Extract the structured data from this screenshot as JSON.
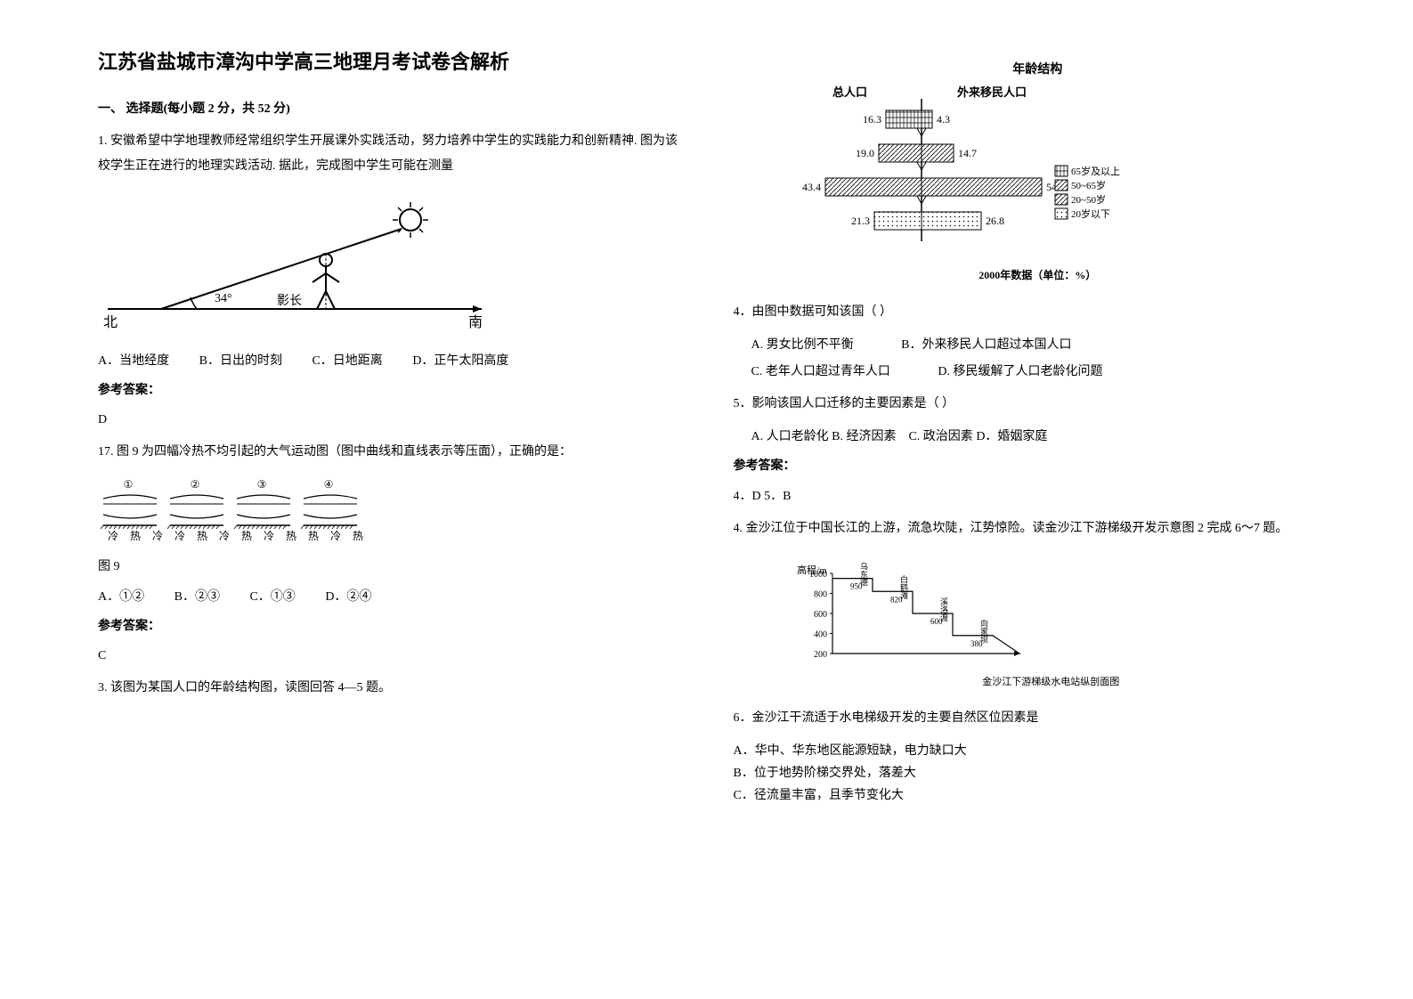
{
  "title": "江苏省盐城市漳沟中学高三地理月考试卷含解析",
  "section1": "一、 选择题(每小题 2 分，共 52 分)",
  "q1": {
    "stem": "1. 安徽希望中学地理教师经常组织学生开展课外实践活动，努力培养中学生的实践能力和创新精神. 图为该校学生正在进行的地理实践活动. 据此，完成图中学生可能在测量",
    "diagram": {
      "angle_label": "34°",
      "shadow_label": "影长",
      "north": "北",
      "south": "南"
    },
    "opts": {
      "A": "A．当地经度",
      "B": "B．日出的时刻",
      "C": "C．日地距离",
      "D": "D．正午太阳高度"
    }
  },
  "answer_label": "参考答案：",
  "q1_answer": "D",
  "q17": {
    "stem": "17. 图 9 为四幅冷热不均引起的大气运动图（图中曲线和直线表示等压面），正确的是：",
    "panels": [
      "①",
      "②",
      "③",
      "④"
    ],
    "labels": [
      [
        "冷",
        "热",
        "冷"
      ],
      [
        "冷",
        "热",
        "冷"
      ],
      [
        "热",
        "冷",
        "热"
      ],
      [
        "热",
        "冷",
        "热"
      ]
    ],
    "caption": "图 9",
    "opts": {
      "A": "A．①②",
      "B": "B．②③",
      "C": "C．①③",
      "D": "D．②④"
    }
  },
  "q17_answer": "C",
  "q3": {
    "stem": "3. 该图为某国人口的年龄结构图，读图回答 4—5 题。",
    "chart_title": "年龄结构",
    "left_label": "总人口",
    "right_label": "外来移民人口",
    "rows": [
      {
        "left": "16.3",
        "right": "4.3",
        "left_w": 40,
        "right_w": 12,
        "fill": "brick"
      },
      {
        "left": "19.0",
        "right": "14.7",
        "left_w": 48,
        "right_w": 36,
        "fill": "hatch"
      },
      {
        "left": "43.4",
        "right": "54.2",
        "left_w": 108,
        "right_w": 135,
        "fill": "hatch"
      },
      {
        "left": "21.3",
        "right": "26.8",
        "left_w": 53,
        "right_w": 67,
        "fill": "dots"
      }
    ],
    "legend": [
      "65岁及以上",
      "50~65岁",
      "20~50岁",
      "20岁以下"
    ],
    "caption": "2000年数据（单位：%）"
  },
  "q4": {
    "stem": "4．由图中数据可知该国（        ）",
    "optA": "A. 男女比例不平衡",
    "optB": "B．外来移民人口超过本国人口",
    "optC": "C. 老年人口超过青年人口",
    "optD": "D. 移民缓解了人口老龄化问题"
  },
  "q5": {
    "stem": "5．影响该国人口迁移的主要因素是（         ）",
    "optA": "A. 人口老龄化",
    "optB": "B. 经济因素",
    "optC": "C. 政治因素",
    "optD": "D．婚姻家庭"
  },
  "q45_answer": "4．D  5．B",
  "q4b": {
    "stem": "4. 金沙江位于中国长江的上游，流急坎陡，江势惊险。读金沙江下游梯级开发示意图 2 完成 6～7 题。",
    "ylabel": "高程/m",
    "yticks": [
      "1000",
      "800",
      "600",
      "400",
      "200"
    ],
    "points": [
      {
        "name": "乌东德",
        "val": "950"
      },
      {
        "name": "白鹤滩",
        "val": "820"
      },
      {
        "name": "溪洛渡",
        "val": "600"
      },
      {
        "name": "向家坝",
        "val": "380"
      }
    ],
    "caption": "金沙江下游梯级水电站纵剖面图"
  },
  "q6": {
    "stem": "6．金沙江干流适于水电梯级开发的主要自然区位因素是",
    "optA": "A．华中、华东地区能源短缺，电力缺口大",
    "optB": "B．位于地势阶梯交界处，落差大",
    "optC": "C．径流量丰富，且季节变化大"
  }
}
